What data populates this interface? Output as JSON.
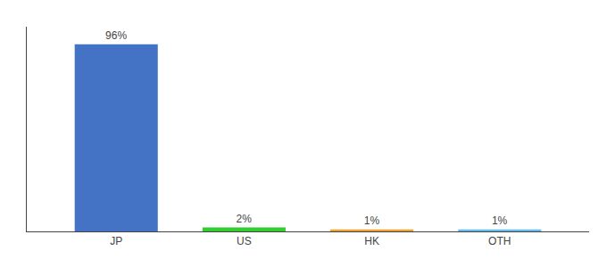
{
  "chart_data": {
    "type": "bar",
    "categories": [
      "JP",
      "US",
      "HK",
      "OTH"
    ],
    "values": [
      96,
      2,
      1,
      1
    ],
    "value_labels": [
      "96%",
      "2%",
      "1%",
      "1%"
    ],
    "colors": [
      "#4472c4",
      "#33cc33",
      "#f0a030",
      "#66bbee"
    ],
    "ylim": [
      0,
      105
    ],
    "grid": false,
    "data_labels": true,
    "tick_labels": "x"
  }
}
